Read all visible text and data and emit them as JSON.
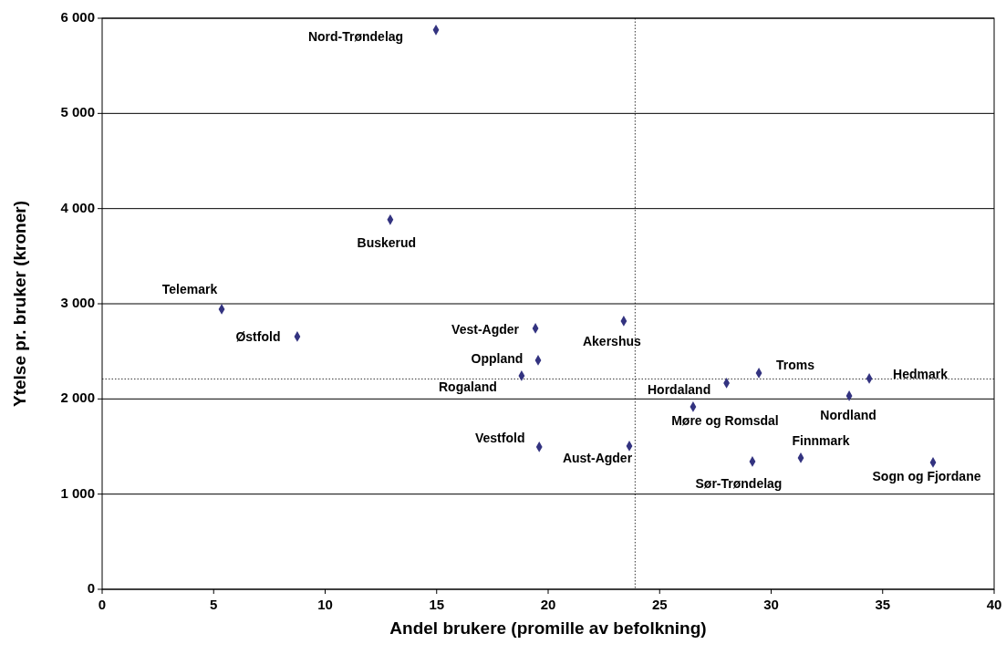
{
  "chart_data": {
    "type": "scatter",
    "xlabel": "Andel brukere (promille av befolkning)",
    "ylabel": "Ytelse pr. bruker (kroner)",
    "x": [
      14.97,
      12.92,
      5.36,
      8.75,
      19.43,
      23.39,
      19.55,
      18.81,
      28.0,
      29.45,
      34.4,
      33.5,
      26.5,
      19.6,
      23.64,
      29.16,
      31.33,
      37.26
    ],
    "series": [
      {
        "color": "#333380",
        "values": [
          5877,
          3883,
          2943,
          2656,
          2742,
          2819,
          2406,
          2244,
          2167,
          2272,
          2215,
          2033,
          1918,
          1496,
          1505,
          1342,
          1381,
          1333
        ]
      }
    ],
    "annotations": [
      {
        "text": "Nord-Trøndelag",
        "x": 14.97,
        "y": 5877
      },
      {
        "text": "Buskerud",
        "x": 12.92,
        "y": 3883
      },
      {
        "text": "Telemark",
        "x": 5.36,
        "y": 2943
      },
      {
        "text": "Østfold",
        "x": 8.75,
        "y": 2656
      },
      {
        "text": "Vest-Agder",
        "x": 19.43,
        "y": 2742
      },
      {
        "text": "Akershus",
        "x": 23.39,
        "y": 2819
      },
      {
        "text": "Oppland",
        "x": 19.55,
        "y": 2406
      },
      {
        "text": "Rogaland",
        "x": 18.81,
        "y": 2244
      },
      {
        "text": "Hordaland",
        "x": 28.0,
        "y": 2167
      },
      {
        "text": "Troms",
        "x": 29.45,
        "y": 2272
      },
      {
        "text": "Hedmark",
        "x": 34.4,
        "y": 2215
      },
      {
        "text": "Nordland",
        "x": 33.5,
        "y": 2033
      },
      {
        "text": "Møre og Romsdal",
        "x": 26.5,
        "y": 1918
      },
      {
        "text": "Vestfold",
        "x": 19.6,
        "y": 1496
      },
      {
        "text": "Aust-Agder",
        "x": 23.64,
        "y": 1505
      },
      {
        "text": "Sør-Trøndelag",
        "x": 29.16,
        "y": 1342
      },
      {
        "text": "Finnmark",
        "x": 31.33,
        "y": 1381
      },
      {
        "text": "Sogn og Fjordane",
        "x": 37.26,
        "y": 1333
      }
    ],
    "ref_lines": [
      {
        "axis": "x",
        "value": 23.9,
        "line_style": "dotted"
      },
      {
        "axis": "y",
        "value": 2210,
        "line_style": "dotted"
      }
    ],
    "xlim": [
      0,
      40
    ],
    "xticks": [
      0,
      5,
      10,
      15,
      20,
      25,
      30,
      35,
      40
    ],
    "ylim": [
      0,
      6000
    ],
    "yticks": [
      0,
      {
        "value": 1000,
        "label": "1 000"
      },
      {
        "value": 2000,
        "label": "2 000"
      },
      {
        "value": 3000,
        "label": "3 000"
      },
      {
        "value": 4000,
        "label": "4 000"
      },
      {
        "value": 5000,
        "label": "5 000"
      },
      {
        "value": 6000,
        "label": "6 000"
      }
    ],
    "grid": "y",
    "marker": "diamond"
  }
}
